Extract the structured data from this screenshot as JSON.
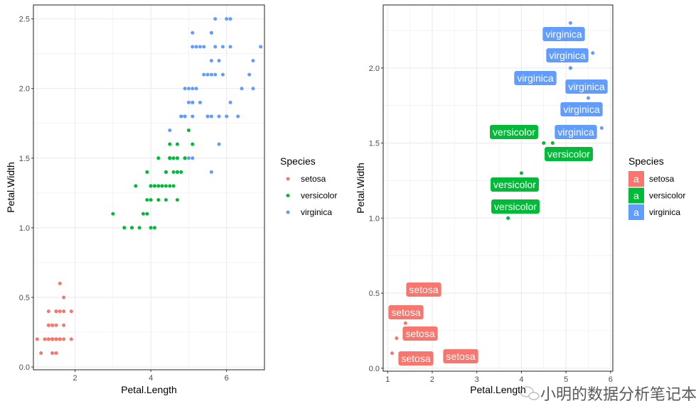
{
  "colors": {
    "setosa": "#F8766D",
    "versicolor": "#00BA38",
    "virginica": "#619CFF"
  },
  "watermark": "小明的数据分析笔记本",
  "chart_data": [
    {
      "type": "scatter",
      "xlabel": "Petal.Length",
      "ylabel": "Petal.Width",
      "xlim": [
        0.9,
        7.0
      ],
      "ylim": [
        -0.02,
        2.6
      ],
      "xticks": [
        2,
        4,
        6
      ],
      "yticks": [
        0.0,
        0.5,
        1.0,
        1.5,
        2.0,
        2.5
      ],
      "grid": true,
      "legend": {
        "title": "Species",
        "position": "right",
        "entries": [
          "setosa",
          "versicolor",
          "virginica"
        ]
      },
      "series": [
        {
          "name": "setosa",
          "points": [
            [
              1.4,
              0.2
            ],
            [
              1.4,
              0.2
            ],
            [
              1.3,
              0.2
            ],
            [
              1.5,
              0.2
            ],
            [
              1.4,
              0.2
            ],
            [
              1.7,
              0.4
            ],
            [
              1.4,
              0.3
            ],
            [
              1.5,
              0.2
            ],
            [
              1.4,
              0.2
            ],
            [
              1.5,
              0.1
            ],
            [
              1.5,
              0.2
            ],
            [
              1.6,
              0.2
            ],
            [
              1.4,
              0.1
            ],
            [
              1.1,
              0.1
            ],
            [
              1.2,
              0.2
            ],
            [
              1.5,
              0.4
            ],
            [
              1.3,
              0.4
            ],
            [
              1.4,
              0.3
            ],
            [
              1.7,
              0.3
            ],
            [
              1.5,
              0.3
            ],
            [
              1.7,
              0.2
            ],
            [
              1.5,
              0.4
            ],
            [
              1.0,
              0.2
            ],
            [
              1.7,
              0.5
            ],
            [
              1.9,
              0.2
            ],
            [
              1.6,
              0.2
            ],
            [
              1.6,
              0.4
            ],
            [
              1.5,
              0.2
            ],
            [
              1.4,
              0.2
            ],
            [
              1.6,
              0.2
            ],
            [
              1.6,
              0.2
            ],
            [
              1.5,
              0.4
            ],
            [
              1.5,
              0.1
            ],
            [
              1.4,
              0.2
            ],
            [
              1.5,
              0.2
            ],
            [
              1.2,
              0.2
            ],
            [
              1.3,
              0.2
            ],
            [
              1.4,
              0.1
            ],
            [
              1.3,
              0.2
            ],
            [
              1.5,
              0.2
            ],
            [
              1.3,
              0.3
            ],
            [
              1.3,
              0.3
            ],
            [
              1.3,
              0.2
            ],
            [
              1.6,
              0.6
            ],
            [
              1.9,
              0.4
            ],
            [
              1.4,
              0.3
            ],
            [
              1.6,
              0.2
            ],
            [
              1.4,
              0.2
            ],
            [
              1.5,
              0.2
            ],
            [
              1.4,
              0.2
            ]
          ]
        },
        {
          "name": "versicolor",
          "points": [
            [
              4.7,
              1.4
            ],
            [
              4.5,
              1.5
            ],
            [
              4.9,
              1.5
            ],
            [
              4.0,
              1.3
            ],
            [
              4.6,
              1.5
            ],
            [
              4.5,
              1.3
            ],
            [
              4.7,
              1.6
            ],
            [
              3.3,
              1.0
            ],
            [
              4.6,
              1.3
            ],
            [
              3.9,
              1.4
            ],
            [
              3.5,
              1.0
            ],
            [
              4.2,
              1.5
            ],
            [
              4.0,
              1.0
            ],
            [
              4.7,
              1.4
            ],
            [
              3.6,
              1.3
            ],
            [
              4.4,
              1.4
            ],
            [
              4.5,
              1.5
            ],
            [
              4.1,
              1.0
            ],
            [
              4.5,
              1.5
            ],
            [
              3.9,
              1.1
            ],
            [
              4.8,
              1.8
            ],
            [
              4.0,
              1.3
            ],
            [
              4.9,
              1.5
            ],
            [
              4.7,
              1.2
            ],
            [
              4.3,
              1.3
            ],
            [
              4.4,
              1.4
            ],
            [
              4.8,
              1.4
            ],
            [
              5.0,
              1.7
            ],
            [
              4.5,
              1.5
            ],
            [
              3.5,
              1.0
            ],
            [
              3.8,
              1.1
            ],
            [
              3.7,
              1.0
            ],
            [
              3.9,
              1.2
            ],
            [
              5.1,
              1.6
            ],
            [
              4.5,
              1.5
            ],
            [
              4.5,
              1.6
            ],
            [
              4.7,
              1.5
            ],
            [
              4.4,
              1.3
            ],
            [
              4.1,
              1.3
            ],
            [
              4.0,
              1.3
            ],
            [
              4.4,
              1.2
            ],
            [
              4.6,
              1.4
            ],
            [
              4.0,
              1.2
            ],
            [
              3.3,
              1.0
            ],
            [
              4.2,
              1.3
            ],
            [
              4.2,
              1.2
            ],
            [
              4.2,
              1.3
            ],
            [
              4.3,
              1.3
            ],
            [
              3.0,
              1.1
            ],
            [
              4.1,
              1.3
            ]
          ]
        },
        {
          "name": "virginica",
          "points": [
            [
              6.0,
              2.5
            ],
            [
              5.1,
              1.9
            ],
            [
              5.9,
              2.1
            ],
            [
              5.6,
              1.8
            ],
            [
              5.8,
              2.2
            ],
            [
              6.6,
              2.1
            ],
            [
              4.5,
              1.7
            ],
            [
              6.3,
              1.8
            ],
            [
              5.8,
              1.8
            ],
            [
              6.1,
              2.5
            ],
            [
              5.1,
              2.0
            ],
            [
              5.3,
              1.9
            ],
            [
              5.5,
              2.1
            ],
            [
              5.0,
              2.0
            ],
            [
              5.1,
              2.4
            ],
            [
              5.3,
              2.3
            ],
            [
              5.5,
              1.8
            ],
            [
              6.7,
              2.2
            ],
            [
              6.9,
              2.3
            ],
            [
              5.0,
              1.5
            ],
            [
              5.7,
              2.3
            ],
            [
              4.9,
              2.0
            ],
            [
              6.7,
              2.0
            ],
            [
              4.9,
              1.8
            ],
            [
              5.7,
              2.1
            ],
            [
              6.0,
              1.8
            ],
            [
              4.8,
              1.8
            ],
            [
              4.9,
              1.8
            ],
            [
              5.6,
              2.1
            ],
            [
              5.8,
              1.6
            ],
            [
              6.1,
              1.9
            ],
            [
              6.4,
              2.0
            ],
            [
              5.6,
              2.2
            ],
            [
              5.1,
              1.5
            ],
            [
              5.6,
              1.4
            ],
            [
              6.1,
              2.3
            ],
            [
              5.6,
              2.4
            ],
            [
              5.5,
              1.8
            ],
            [
              4.8,
              1.8
            ],
            [
              5.4,
              2.1
            ],
            [
              5.6,
              2.4
            ],
            [
              5.1,
              2.3
            ],
            [
              5.1,
              1.9
            ],
            [
              5.9,
              2.3
            ],
            [
              5.7,
              2.5
            ],
            [
              5.2,
              2.3
            ],
            [
              5.0,
              1.9
            ],
            [
              5.2,
              2.0
            ],
            [
              5.4,
              2.3
            ],
            [
              5.1,
              1.8
            ]
          ]
        }
      ]
    },
    {
      "type": "scatter",
      "xlabel": "Petal.Length",
      "ylabel": "Petal.Width",
      "xlim": [
        0.9,
        6.05
      ],
      "ylim": [
        -0.02,
        2.42
      ],
      "xticks": [
        1,
        2,
        3,
        4,
        5,
        6
      ],
      "yticks": [
        0.0,
        0.5,
        1.0,
        1.5,
        2.0
      ],
      "grid": true,
      "legend": {
        "title": "Species",
        "position": "right",
        "key_glyph": "a",
        "entries": [
          "setosa",
          "versicolor",
          "virginica"
        ]
      },
      "series": [
        {
          "name": "setosa",
          "points": [
            [
              1.4,
              0.3
            ],
            [
              1.2,
              0.2
            ],
            [
              1.1,
              0.1
            ],
            [
              1.9,
              0.1
            ],
            [
              1.5,
              0.2
            ]
          ],
          "labels": [
            "setosa",
            "setosa",
            "setosa",
            "setosa",
            "setosa"
          ]
        },
        {
          "name": "versicolor",
          "points": [
            [
              4.5,
              1.5
            ],
            [
              4.7,
              1.5
            ],
            [
              4.0,
              1.3
            ],
            [
              3.7,
              1.0
            ]
          ],
          "labels": [
            "versicolor",
            "versicolor",
            "versicolor",
            "versicolor"
          ]
        },
        {
          "name": "virginica",
          "points": [
            [
              5.1,
              2.3
            ],
            [
              5.6,
              2.1
            ],
            [
              5.1,
              2.0
            ],
            [
              5.5,
              1.8
            ],
            [
              5.8,
              1.6
            ],
            [
              5.1,
              2.0
            ]
          ],
          "labels": [
            "virginica",
            "virginica",
            "virginica",
            "virginica",
            "virginica",
            "virginica"
          ]
        }
      ]
    }
  ]
}
